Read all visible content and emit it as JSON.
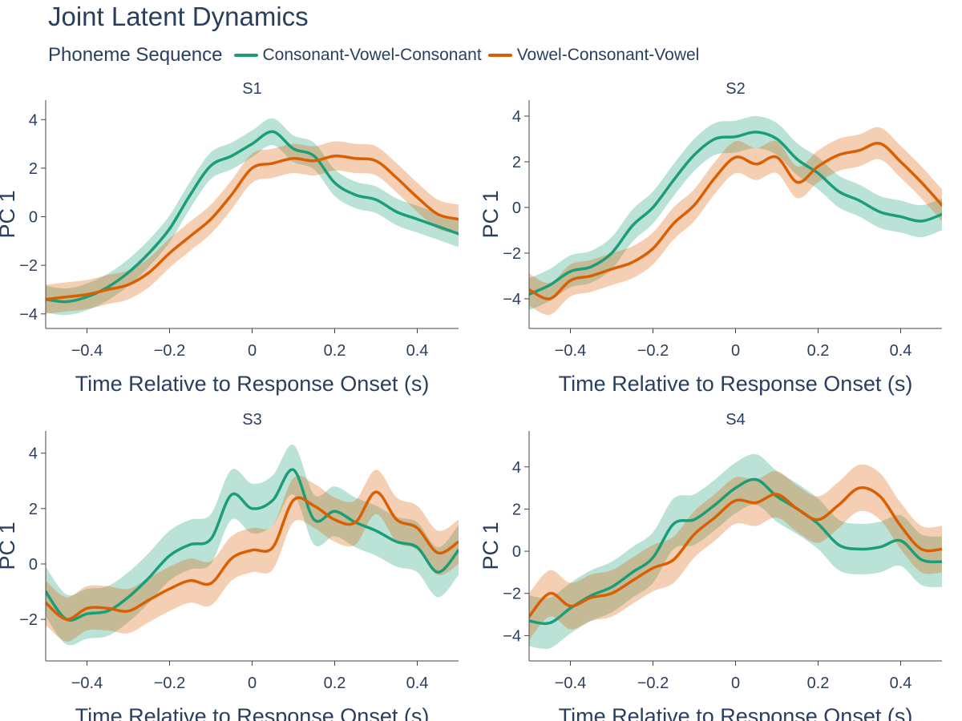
{
  "title": "Joint Latent Dynamics",
  "legend": {
    "title": "Phoneme Sequence",
    "entries": [
      {
        "label": "Consonant-Vowel-Consonant",
        "color": "#1b9e77"
      },
      {
        "label": "Vowel-Consonant-Vowel",
        "color": "#d95f02"
      }
    ]
  },
  "chart_data": [
    {
      "type": "line",
      "title": "S1",
      "xlabel": "Time Relative to Response Onset (s)",
      "ylabel": "PC 1",
      "xlim": [
        -0.5,
        0.5
      ],
      "ylim": [
        -4.6,
        4.8
      ],
      "xticks": [
        -0.4,
        -0.2,
        0,
        0.2,
        0.4
      ],
      "xtick_labels": [
        "−0.4",
        "−0.2",
        "0",
        "0.2",
        "0.4"
      ],
      "yticks": [
        -4,
        -2,
        0,
        2,
        4
      ],
      "ytick_labels": [
        "−4",
        "−2",
        "0",
        "2",
        "4"
      ],
      "x": [
        -0.5,
        -0.45,
        -0.4,
        -0.35,
        -0.3,
        -0.25,
        -0.2,
        -0.15,
        -0.1,
        -0.05,
        0,
        0.05,
        0.1,
        0.15,
        0.2,
        0.25,
        0.3,
        0.35,
        0.4,
        0.45,
        0.5
      ],
      "series": [
        {
          "name": "Consonant-Vowel-Consonant",
          "values": [
            -3.4,
            -3.5,
            -3.3,
            -2.9,
            -2.3,
            -1.5,
            -0.5,
            0.9,
            2.1,
            2.5,
            3.0,
            3.5,
            2.8,
            2.5,
            1.4,
            0.9,
            0.7,
            0.2,
            -0.1,
            -0.4,
            -0.7
          ],
          "band": 0.55
        },
        {
          "name": "Vowel-Consonant-Vowel",
          "values": [
            -3.4,
            -3.3,
            -3.2,
            -3.0,
            -2.8,
            -2.3,
            -1.5,
            -0.8,
            -0.1,
            0.9,
            2.0,
            2.2,
            2.4,
            2.3,
            2.5,
            2.4,
            2.3,
            1.6,
            0.8,
            0.1,
            -0.1
          ],
          "band": 0.6
        }
      ]
    },
    {
      "type": "line",
      "title": "S2",
      "xlabel": "Time Relative to Response Onset (s)",
      "ylabel": "PC 1",
      "xlim": [
        -0.5,
        0.5
      ],
      "ylim": [
        -5.3,
        4.7
      ],
      "xticks": [
        -0.4,
        -0.2,
        0,
        0.2,
        0.4
      ],
      "xtick_labels": [
        "−0.4",
        "−0.2",
        "0",
        "0.2",
        "0.4"
      ],
      "yticks": [
        -4,
        -2,
        0,
        2,
        4
      ],
      "ytick_labels": [
        "−4",
        "−2",
        "0",
        "2",
        "4"
      ],
      "x": [
        -0.5,
        -0.45,
        -0.4,
        -0.35,
        -0.3,
        -0.25,
        -0.2,
        -0.15,
        -0.1,
        -0.05,
        0,
        0.05,
        0.1,
        0.15,
        0.2,
        0.25,
        0.3,
        0.35,
        0.4,
        0.45,
        0.5
      ],
      "series": [
        {
          "name": "Consonant-Vowel-Consonant",
          "values": [
            -3.8,
            -3.4,
            -2.8,
            -2.6,
            -2.0,
            -0.8,
            0.0,
            1.2,
            2.3,
            3.0,
            3.1,
            3.3,
            3.0,
            2.1,
            1.5,
            0.7,
            0.3,
            -0.2,
            -0.4,
            -0.6,
            -0.3
          ],
          "band": 0.7
        },
        {
          "name": "Vowel-Consonant-Vowel",
          "values": [
            -3.6,
            -4.0,
            -3.2,
            -3.0,
            -2.7,
            -2.4,
            -1.8,
            -0.7,
            0.1,
            1.3,
            2.2,
            1.9,
            2.2,
            1.1,
            1.8,
            2.3,
            2.5,
            2.8,
            2.0,
            1.1,
            0.1
          ],
          "band": 0.7
        }
      ]
    },
    {
      "type": "line",
      "title": "S3",
      "xlabel": "Time Relative to Response Onset (s)",
      "ylabel": "PC 1",
      "xlim": [
        -0.5,
        0.5
      ],
      "ylim": [
        -3.5,
        4.8
      ],
      "xticks": [
        -0.4,
        -0.2,
        0,
        0.2,
        0.4
      ],
      "xtick_labels": [
        "−0.4",
        "−0.2",
        "0",
        "0.2",
        "0.4"
      ],
      "yticks": [
        -2,
        0,
        2,
        4
      ],
      "ytick_labels": [
        "−2",
        "0",
        "2",
        "4"
      ],
      "x": [
        -0.5,
        -0.45,
        -0.4,
        -0.35,
        -0.3,
        -0.25,
        -0.2,
        -0.15,
        -0.1,
        -0.05,
        0,
        0.05,
        0.1,
        0.15,
        0.2,
        0.25,
        0.3,
        0.35,
        0.4,
        0.45,
        0.5
      ],
      "series": [
        {
          "name": "Consonant-Vowel-Consonant",
          "values": [
            -1.0,
            -2.0,
            -1.8,
            -1.7,
            -1.2,
            -0.5,
            0.3,
            0.7,
            0.9,
            2.5,
            2.0,
            2.3,
            3.4,
            1.6,
            1.9,
            1.5,
            1.2,
            0.8,
            0.6,
            -0.3,
            0.5
          ],
          "band": 0.9
        },
        {
          "name": "Vowel-Consonant-Vowel",
          "values": [
            -1.4,
            -2.0,
            -1.6,
            -1.6,
            -1.7,
            -1.3,
            -0.9,
            -0.6,
            -0.7,
            0.2,
            0.5,
            0.6,
            2.3,
            2.1,
            1.6,
            1.5,
            2.6,
            1.6,
            1.3,
            0.4,
            0.8
          ],
          "band": 0.8
        }
      ]
    },
    {
      "type": "line",
      "title": "S4",
      "xlabel": "Time Relative to Response Onset (s)",
      "ylabel": "PC 1",
      "xlim": [
        -0.5,
        0.5
      ],
      "ylim": [
        -5.2,
        5.7
      ],
      "xticks": [
        -0.4,
        -0.2,
        0,
        0.2,
        0.4
      ],
      "xtick_labels": [
        "−0.4",
        "−0.2",
        "0",
        "0.2",
        "0.4"
      ],
      "yticks": [
        -4,
        -2,
        0,
        2,
        4
      ],
      "ytick_labels": [
        "−4",
        "−2",
        "0",
        "2",
        "4"
      ],
      "x": [
        -0.5,
        -0.45,
        -0.4,
        -0.35,
        -0.3,
        -0.25,
        -0.2,
        -0.15,
        -0.1,
        -0.05,
        0,
        0.05,
        0.1,
        0.15,
        0.2,
        0.25,
        0.3,
        0.35,
        0.4,
        0.45,
        0.5
      ],
      "series": [
        {
          "name": "Consonant-Vowel-Consonant",
          "values": [
            -3.3,
            -3.4,
            -2.7,
            -2.1,
            -1.7,
            -1.0,
            -0.3,
            1.3,
            1.5,
            2.2,
            3.0,
            3.4,
            2.6,
            2.0,
            1.3,
            0.3,
            0.1,
            0.2,
            0.5,
            -0.4,
            -0.5
          ],
          "band": 1.2
        },
        {
          "name": "Vowel-Consonant-Vowel",
          "values": [
            -3.1,
            -2.0,
            -2.6,
            -2.2,
            -2.0,
            -1.4,
            -0.8,
            -0.4,
            0.8,
            1.6,
            2.4,
            2.3,
            2.7,
            2.0,
            1.5,
            2.2,
            3.0,
            2.6,
            1.2,
            0.1,
            0.1
          ],
          "band": 1.1
        }
      ]
    }
  ]
}
